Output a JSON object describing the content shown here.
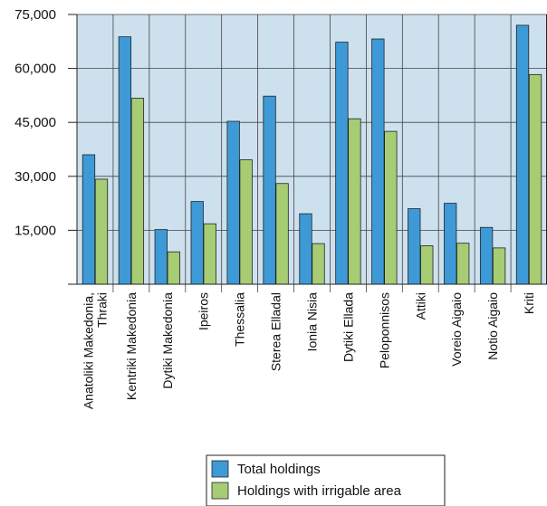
{
  "chart_data": {
    "type": "bar",
    "categories": [
      [
        "Anatoliki Makedonia,",
        "Thraki"
      ],
      [
        "Kentriki Makedonia"
      ],
      [
        "Dytiki Makedonia"
      ],
      [
        "Ipeiros"
      ],
      [
        "Thessalia"
      ],
      [
        "Sterea Elladal"
      ],
      [
        "Ionia Nisia"
      ],
      [
        "Dytiki Ellada"
      ],
      [
        "Peloponnisos"
      ],
      [
        "Attiki"
      ],
      [
        "Voreio Aigaio"
      ],
      [
        "Notio Aigaio"
      ],
      [
        "Kriti"
      ]
    ],
    "series": [
      {
        "name": "Total holdings",
        "color": "#3d9ad6",
        "values": [
          36000,
          68800,
          15200,
          23000,
          45300,
          52300,
          19600,
          67300,
          68200,
          21000,
          22500,
          15800,
          72000
        ]
      },
      {
        "name": "Holdings with irrigable area",
        "color": "#a6cc74",
        "values": [
          29200,
          51700,
          9000,
          16800,
          34600,
          28000,
          11300,
          46000,
          42500,
          10700,
          11400,
          10100,
          58300
        ]
      }
    ],
    "yticks": [
      "15,000",
      "30,000",
      "45,000",
      "60,000",
      "75,000"
    ],
    "ytick_values": [
      15000,
      30000,
      45000,
      60000,
      75000
    ],
    "ylim": [
      0,
      75000
    ],
    "grid": true,
    "plot_background": "#cde0ee",
    "legend_position": "bottom"
  }
}
